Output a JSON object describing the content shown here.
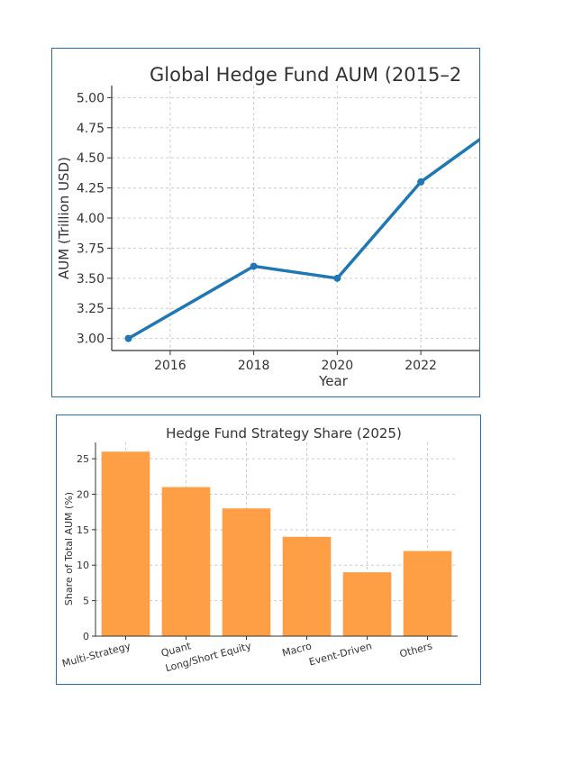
{
  "colors": {
    "line": "#1f77b4",
    "bar": "#ff9f45",
    "grid": "#cccccc",
    "axis": "#333333",
    "frame": "#2b6ea6"
  },
  "chart_data": [
    {
      "type": "line",
      "title": "Global Hedge Fund AUM (2015–2",
      "xlabel": "Year",
      "ylabel": "AUM (Trillion USD)",
      "x": [
        2015,
        2018,
        2020,
        2022,
        2023.4
      ],
      "y": [
        3.0,
        3.6,
        3.5,
        4.3,
        4.65
      ],
      "xlim": [
        2014.6,
        2023.4
      ],
      "ylim": [
        2.9,
        5.1
      ],
      "xticks": [
        2016,
        2018,
        2020,
        2022
      ],
      "yticks": [
        3.0,
        3.25,
        3.5,
        3.75,
        4.0,
        4.25,
        4.5,
        4.75,
        5.0
      ],
      "ytick_labels": [
        "3.00",
        "3.25",
        "3.50",
        "3.75",
        "4.00",
        "4.25",
        "4.50",
        "4.75",
        "5.00"
      ],
      "markers": [
        2015,
        2018,
        2020,
        2022
      ],
      "grid": true
    },
    {
      "type": "bar",
      "title": "Hedge Fund Strategy Share (2025)",
      "xlabel": "",
      "ylabel": "Share of Total AUM (%)",
      "categories": [
        "Multi-Strategy",
        "Quant",
        "Long/Short Equity",
        "Macro",
        "Event-Driven",
        "Others"
      ],
      "values": [
        26,
        21,
        18,
        14,
        9,
        12
      ],
      "ylim": [
        0,
        27.3
      ],
      "yticks": [
        0,
        5,
        10,
        15,
        20,
        25
      ],
      "grid": true
    }
  ]
}
